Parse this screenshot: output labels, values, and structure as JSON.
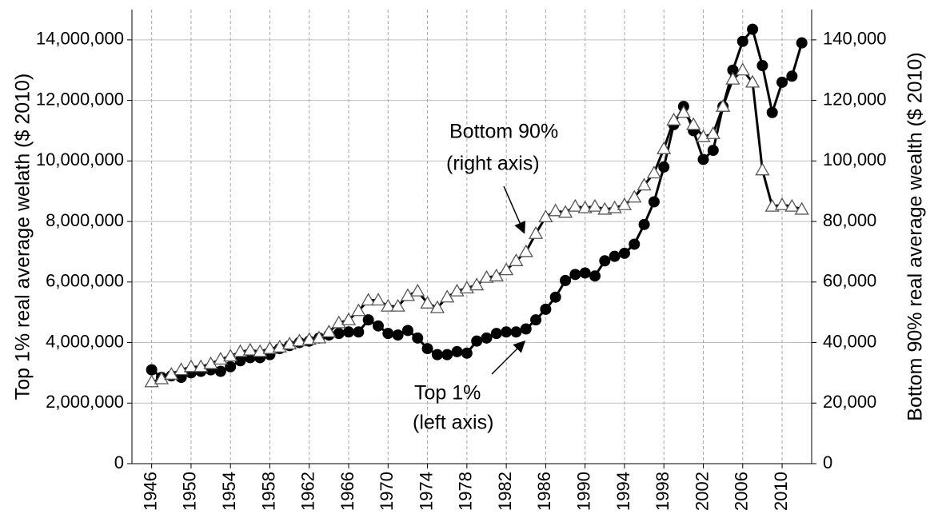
{
  "chart_data": {
    "type": "line",
    "y_label": "Top 1% real average welath ($ 2010)",
    "y2_label": "Bottom 90% real average wealth ($ 2010)",
    "annotations": [
      "Bottom 90%",
      "(right axis)",
      "Top 1%",
      "(left axis)"
    ],
    "x": [
      1946,
      1947,
      1948,
      1949,
      1950,
      1951,
      1952,
      1953,
      1954,
      1955,
      1956,
      1957,
      1958,
      1959,
      1960,
      1961,
      1962,
      1963,
      1964,
      1965,
      1966,
      1967,
      1968,
      1969,
      1970,
      1971,
      1972,
      1973,
      1974,
      1975,
      1976,
      1977,
      1978,
      1979,
      1980,
      1981,
      1982,
      1983,
      1984,
      1985,
      1986,
      1987,
      1988,
      1989,
      1990,
      1991,
      1992,
      1993,
      1994,
      1995,
      1996,
      1997,
      1998,
      1999,
      2000,
      2001,
      2002,
      2003,
      2004,
      2005,
      2006,
      2007,
      2008,
      2009,
      2010,
      2011,
      2012
    ],
    "xlim": [
      1944,
      2013
    ],
    "xticks": [
      1946,
      1950,
      1954,
      1958,
      1962,
      1966,
      1970,
      1974,
      1978,
      1982,
      1986,
      1990,
      1994,
      1998,
      2002,
      2006,
      2010
    ],
    "ylim": [
      0,
      15000000
    ],
    "yticks": [
      0,
      {
        "value": 2000000,
        "label": "2,000,000"
      },
      {
        "value": 4000000,
        "label": "4,000,000"
      },
      {
        "value": 6000000,
        "label": "6,000,000"
      },
      {
        "value": 8000000,
        "label": "8,000,000"
      },
      {
        "value": 10000000,
        "label": "10,000,000"
      },
      {
        "value": 12000000,
        "label": "12,000,000"
      },
      {
        "value": 14000000,
        "label": "14,000,000"
      }
    ],
    "y2lim": [
      0,
      150000
    ],
    "y2ticks": [
      0,
      {
        "value": 20000,
        "label": "20,000"
      },
      {
        "value": 40000,
        "label": "40,000"
      },
      {
        "value": 60000,
        "label": "60,000"
      },
      {
        "value": 80000,
        "label": "80,000"
      },
      {
        "value": 100000,
        "label": "100,000"
      },
      {
        "value": 120000,
        "label": "120,000"
      },
      {
        "value": 140000,
        "label": "140,000"
      }
    ],
    "grid": true,
    "series": [
      {
        "name": "Top 1%",
        "color": "#000000",
        "marker": "circle",
        "values": [
          3100000,
          2850000,
          2900000,
          2850000,
          3000000,
          3050000,
          3100000,
          3050000,
          3200000,
          3400000,
          3500000,
          3500000,
          3600000,
          3800000,
          3900000,
          4000000,
          4050000,
          4150000,
          4250000,
          4300000,
          4350000,
          4350000,
          4750000,
          4550000,
          4300000,
          4250000,
          4400000,
          4150000,
          3800000,
          3600000,
          3600000,
          3700000,
          3650000,
          4050000,
          4150000,
          4300000,
          4350000,
          4350000,
          4450000,
          4750000,
          5100000,
          5500000,
          6050000,
          6250000,
          6300000,
          6200000,
          6700000,
          6850000,
          6950000,
          7250000,
          7900000,
          8650000,
          9800000,
          11200000,
          11800000,
          11000000,
          10050000,
          10350000,
          11800000,
          13000000,
          13950000,
          14350000,
          13150000,
          11600000,
          12600000,
          12800000,
          13900000
        ]
      },
      {
        "name": "Bottom 90%",
        "color": "#ffffff",
        "marker": "triangle",
        "axis": "y2",
        "values": [
          27000,
          28000,
          29500,
          31000,
          32000,
          32000,
          33000,
          34500,
          35500,
          37000,
          37500,
          37000,
          38000,
          38500,
          39500,
          40500,
          41000,
          41500,
          43500,
          46500,
          47500,
          50500,
          54000,
          54000,
          52000,
          52000,
          55500,
          57000,
          53000,
          51500,
          55000,
          57000,
          58000,
          59000,
          61500,
          62000,
          64000,
          67000,
          70000,
          76000,
          81500,
          83500,
          83000,
          85000,
          84500,
          85000,
          84000,
          84500,
          85500,
          88000,
          92000,
          96000,
          104000,
          113500,
          116000,
          112000,
          108000,
          109000,
          118000,
          127000,
          130000,
          126000,
          97000,
          85000,
          85500,
          85000,
          84000
        ]
      }
    ]
  }
}
